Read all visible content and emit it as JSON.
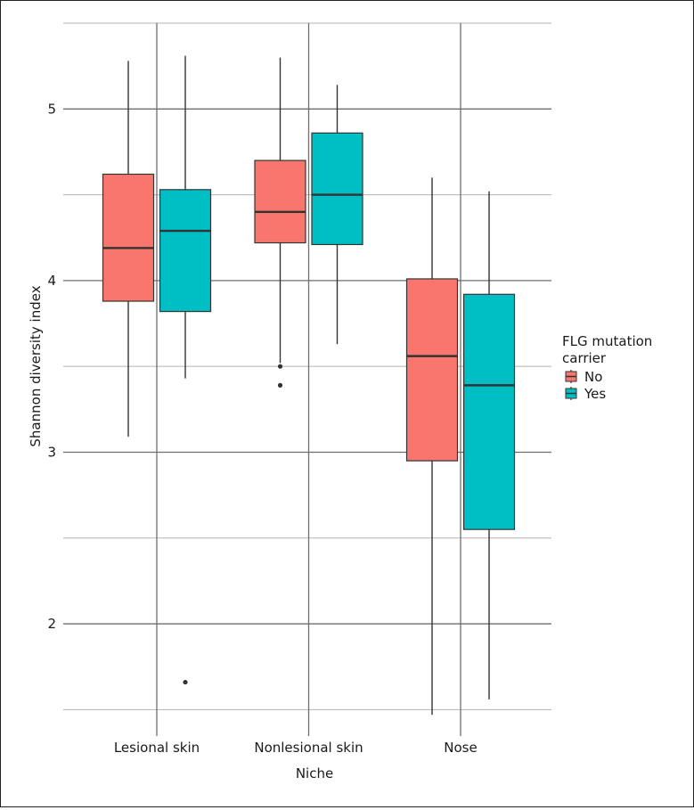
{
  "chart_data": {
    "type": "boxplot",
    "title": "",
    "xlabel": "Niche",
    "ylabel": "Shannon diversity index",
    "categories": [
      "Lesional skin",
      "Nonlesional skin",
      "Nose"
    ],
    "ylim": [
      1.45,
      5.5
    ],
    "y_ticks": [
      2,
      3,
      4,
      5
    ],
    "y_tick_labels": [
      "2",
      "3",
      "4",
      "5"
    ],
    "legend": {
      "title": "FLG mutation carrier",
      "title_lines": [
        "FLG mutation",
        "carrier"
      ],
      "placement": "right"
    },
    "series": [
      {
        "name": "No",
        "color": "#F8766D",
        "boxes": [
          {
            "category": "Lesional skin",
            "whisker_low": 3.09,
            "q1": 3.88,
            "median": 4.19,
            "q3": 4.62,
            "whisker_high": 5.28,
            "outliers": []
          },
          {
            "category": "Nonlesional skin",
            "whisker_low": 3.52,
            "q1": 4.22,
            "median": 4.4,
            "q3": 4.7,
            "whisker_high": 5.3,
            "outliers": [
              3.5,
              3.39
            ]
          },
          {
            "category": "Nose",
            "whisker_low": 1.47,
            "q1": 2.95,
            "median": 3.56,
            "q3": 4.01,
            "whisker_high": 4.6,
            "outliers": []
          }
        ]
      },
      {
        "name": "Yes",
        "color": "#00BFC4",
        "boxes": [
          {
            "category": "Lesional skin",
            "whisker_low": 3.43,
            "q1": 3.82,
            "median": 4.29,
            "q3": 4.53,
            "whisker_high": 5.31,
            "outliers": [
              1.66
            ]
          },
          {
            "category": "Nonlesional skin",
            "whisker_low": 3.63,
            "q1": 4.21,
            "median": 4.5,
            "q3": 4.86,
            "whisker_high": 5.14,
            "outliers": []
          },
          {
            "category": "Nose",
            "whisker_low": 1.56,
            "q1": 2.55,
            "median": 3.39,
            "q3": 3.92,
            "whisker_high": 4.52,
            "outliers": []
          }
        ]
      }
    ]
  }
}
